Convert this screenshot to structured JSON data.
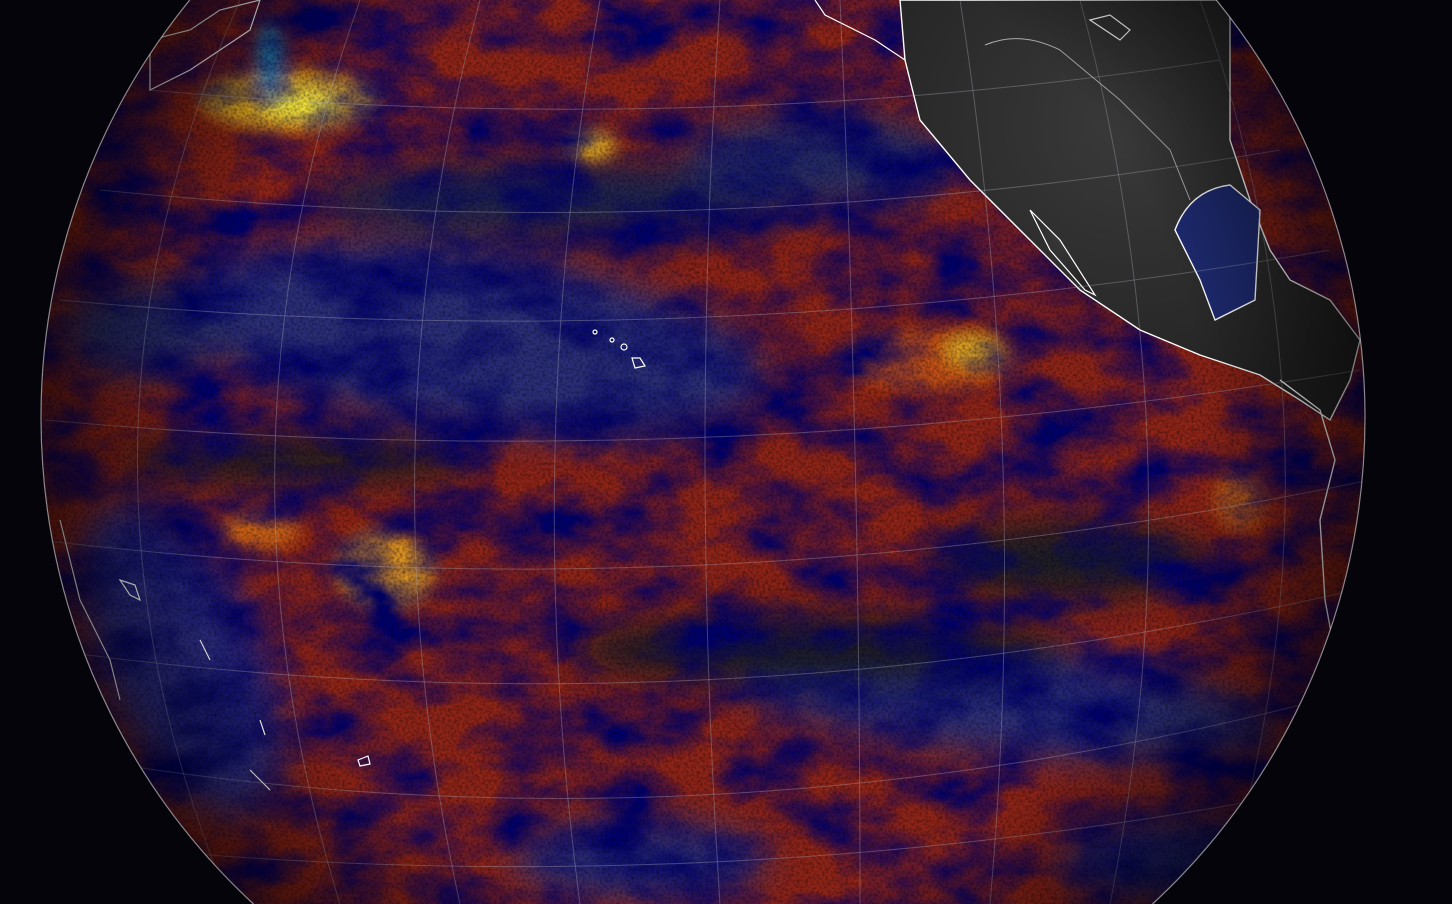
{
  "map": {
    "projection": "orthographic",
    "colors": {
      "background": "#04040a",
      "ocean_base": "#8e2418",
      "warm_anomaly": "#e8b020",
      "hot_anomaly": "#f5e640",
      "cool_anomaly": "#2a2f78",
      "neutral": "#1a1a22",
      "land": "#2e2e2e",
      "coastline": "#ffffff",
      "graticule": "#b0b0c0"
    }
  }
}
